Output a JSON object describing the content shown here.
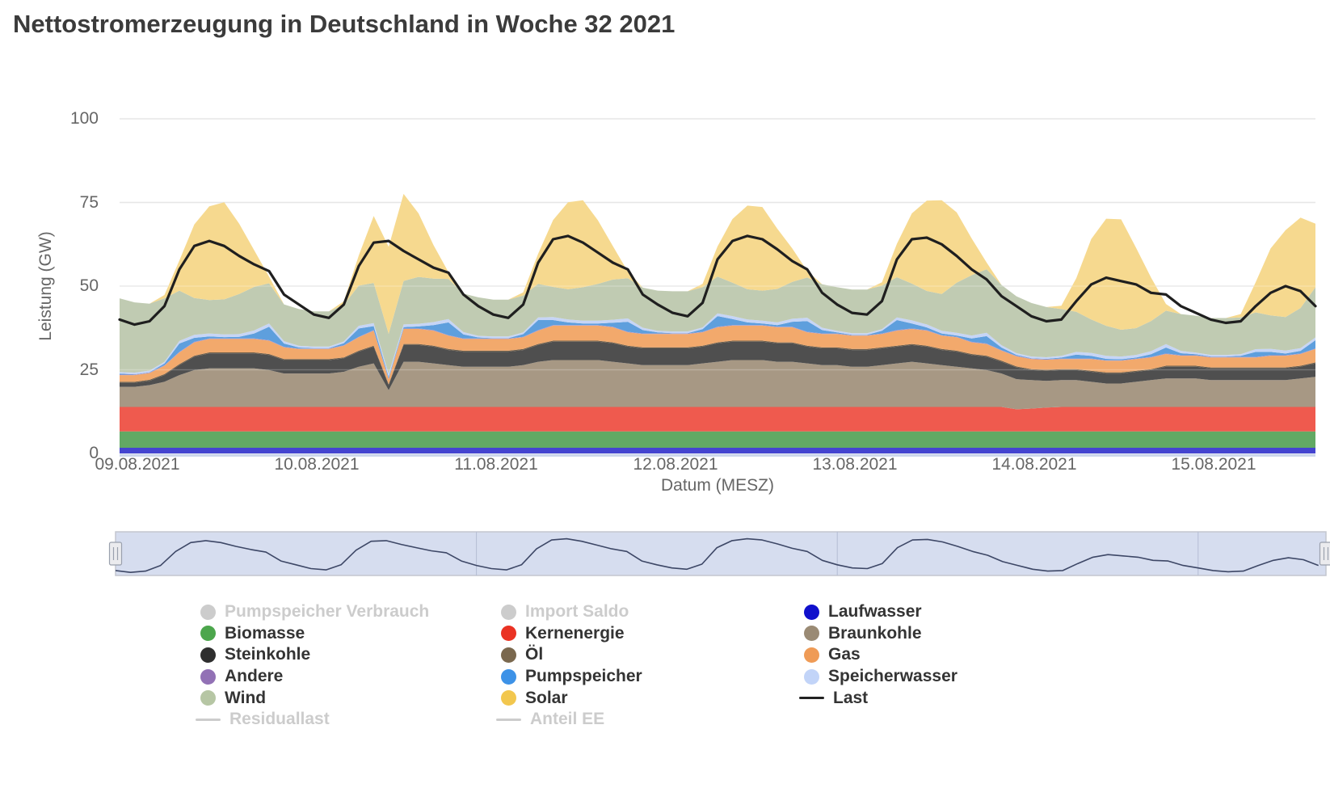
{
  "page": {
    "title": "Nettostromerzeugung in Deutschland in Woche 32 2021"
  },
  "axes": {
    "y_title": "Leistung (GW)",
    "x_title": "Datum (MESZ)",
    "y_ticks": [
      {
        "value": 0,
        "label": "0"
      },
      {
        "value": 25,
        "label": "25"
      },
      {
        "value": 50,
        "label": "50"
      },
      {
        "value": 75,
        "label": "75"
      },
      {
        "value": 100,
        "label": "100"
      }
    ],
    "x_ticks": [
      {
        "hour": 0,
        "label": "09.08.2021"
      },
      {
        "hour": 24,
        "label": "10.08.2021"
      },
      {
        "hour": 48,
        "label": "11.08.2021"
      },
      {
        "hour": 72,
        "label": "12.08.2021"
      },
      {
        "hour": 96,
        "label": "13.08.2021"
      },
      {
        "hour": 120,
        "label": "14.08.2021"
      },
      {
        "hour": 144,
        "label": "15.08.2021"
      }
    ]
  },
  "colors": {
    "title_text": "#3b3b3b",
    "axis_text": "#666666",
    "gridline": "#e6e6e6",
    "axis_baseline": "#ccd6eb",
    "disabled_legend": "#cccccc",
    "last_line": "#1f1f1f",
    "navigator_bg": "#d6ddef",
    "navigator_line": "#3d4766",
    "navigator_grid": "#b4bdd4",
    "navigator_border": "#c3c6cf",
    "handle_fill": "#ebebee",
    "handle_stroke": "#9aa0ad"
  },
  "navigator": {
    "selected_range": "full"
  },
  "legend": {
    "columns": [
      [
        {
          "label": "Pumpspeicher Verbrauch",
          "color": "#cccccc",
          "marker": "circle",
          "enabled": false
        },
        {
          "label": "Biomasse",
          "color": "#4ca64c",
          "marker": "circle",
          "enabled": true
        },
        {
          "label": "Steinkohle",
          "color": "#2e2e2e",
          "marker": "circle",
          "enabled": true
        },
        {
          "label": "Andere",
          "color": "#9271b5",
          "marker": "circle",
          "enabled": true
        },
        {
          "label": "Wind",
          "color": "#b6c6a4",
          "marker": "circle",
          "enabled": true
        },
        {
          "label": "Residuallast",
          "color": "#cccccc",
          "marker": "line",
          "enabled": false
        }
      ],
      [
        {
          "label": "Import Saldo",
          "color": "#cccccc",
          "marker": "circle",
          "enabled": false
        },
        {
          "label": "Kernenergie",
          "color": "#ea3223",
          "marker": "circle",
          "enabled": true
        },
        {
          "label": "Öl",
          "color": "#7a684e",
          "marker": "circle",
          "enabled": true
        },
        {
          "label": "Pumpspeicher",
          "color": "#3d92e7",
          "marker": "circle",
          "enabled": true
        },
        {
          "label": "Solar",
          "color": "#f2c74e",
          "marker": "circle",
          "enabled": true
        },
        {
          "label": "Anteil EE",
          "color": "#cccccc",
          "marker": "line",
          "enabled": false
        }
      ],
      [
        {
          "label": "Laufwasser",
          "color": "#1010cc",
          "marker": "circle",
          "enabled": true
        },
        {
          "label": "Braunkohle",
          "color": "#9a8a74",
          "marker": "circle",
          "enabled": true
        },
        {
          "label": "Gas",
          "color": "#ef9b56",
          "marker": "circle",
          "enabled": true
        },
        {
          "label": "Speicherwasser",
          "color": "#c2d4f8",
          "marker": "circle",
          "enabled": true
        },
        {
          "label": "Last",
          "color": "#222222",
          "marker": "line",
          "enabled": true
        }
      ]
    ]
  },
  "chart_data": {
    "type": "area",
    "title": "Nettostromerzeugung in Deutschland in Woche 32 2021",
    "xlabel": "Datum (MESZ)",
    "ylabel": "Leistung (GW)",
    "ylim": [
      0,
      100
    ],
    "grid": true,
    "legend_position": "bottom",
    "x_unit": "hours since 2021-08-09 00:00 MESZ",
    "hours_start": 0,
    "hours_step": 2,
    "points_count": 81,
    "stack_order": [
      "Laufwasser",
      "Biomasse",
      "Kernenergie",
      "Braunkohle",
      "Steinkohle",
      "Öl",
      "Gas",
      "Andere",
      "Pumpspeicher",
      "Speicherwasser",
      "Wind",
      "Solar"
    ],
    "series": [
      {
        "name": "Laufwasser",
        "area_color": "#4444d0",
        "const": 1.7,
        "count": 81
      },
      {
        "name": "Biomasse",
        "area_color": "#62a964",
        "const": 4.9,
        "count": 81
      },
      {
        "name": "Kernenergie",
        "area_color": "#ef5a4e",
        "values": [
          7.3,
          7.3,
          7.3,
          7.3,
          7.3,
          7.3,
          7.3,
          7.3,
          7.3,
          7.3,
          7.3,
          7.3,
          7.3,
          7.3,
          7.3,
          7.3,
          7.3,
          7.3,
          7.3,
          7.3,
          7.3,
          7.3,
          7.3,
          7.3,
          7.3,
          7.3,
          7.3,
          7.3,
          7.3,
          7.3,
          7.3,
          7.3,
          7.3,
          7.3,
          7.3,
          7.3,
          7.3,
          7.3,
          7.3,
          7.3,
          7.3,
          7.3,
          7.3,
          7.3,
          7.3,
          7.3,
          7.3,
          7.3,
          7.3,
          7.3,
          7.3,
          7.3,
          7.3,
          7.3,
          7.3,
          7.3,
          7.3,
          7.3,
          7.3,
          7.3,
          6.6,
          6.8,
          7.1,
          7.3,
          7.3,
          7.3,
          7.3,
          7.3,
          7.3,
          7.3,
          7.3,
          7.3,
          7.3,
          7.3,
          7.3,
          7.3,
          7.3,
          7.3,
          7.3,
          7.3,
          7.3
        ]
      },
      {
        "name": "Braunkohle",
        "area_color": "#a79884",
        "values": [
          6,
          6,
          6.5,
          7.5,
          9.5,
          11,
          11.5,
          11.5,
          11.5,
          11.5,
          11,
          10,
          10,
          10,
          10,
          10.5,
          12,
          13,
          5,
          13.5,
          13.5,
          13,
          12.5,
          12,
          12,
          12,
          12,
          12.5,
          13.5,
          14,
          14,
          14,
          14,
          13.5,
          13,
          12.5,
          12.5,
          12.5,
          12.5,
          13,
          13.5,
          14,
          14,
          14,
          13.5,
          13.5,
          13,
          12.5,
          12.5,
          12,
          12,
          12.5,
          13,
          13.5,
          13,
          12.5,
          12,
          11.5,
          11,
          10,
          9,
          8.5,
          8,
          8,
          8,
          7.5,
          7,
          7,
          7.5,
          8,
          8.5,
          8.5,
          8.5,
          8,
          8,
          8,
          8,
          8,
          8,
          8.5,
          9
        ]
      },
      {
        "name": "Steinkohle",
        "area_color": "#4f4f4f",
        "values": [
          1.2,
          1.2,
          1.3,
          2,
          3,
          4,
          4.5,
          4.5,
          4.5,
          4.5,
          4.5,
          4,
          4,
          4,
          4,
          4,
          4.5,
          5,
          1.5,
          5,
          5,
          5,
          4.5,
          4.5,
          4.5,
          4.5,
          4.5,
          4.5,
          5,
          5.5,
          5.5,
          5.5,
          5.5,
          5.5,
          5,
          5,
          5,
          5,
          5,
          5,
          5.5,
          5.5,
          5.5,
          5.5,
          5.5,
          5.5,
          5,
          5,
          5,
          5,
          5,
          5,
          5,
          5,
          5,
          4.5,
          4.5,
          4,
          4,
          3.5,
          3.5,
          3,
          3,
          3,
          3,
          3,
          3,
          3,
          3,
          3,
          3.5,
          3.5,
          3.5,
          3.5,
          3.5,
          3.5,
          3.5,
          3.5,
          3.5,
          3.5,
          4
        ]
      },
      {
        "name": "Öl",
        "area_color": "#6e5f4c",
        "const": 0.3,
        "count": 81
      },
      {
        "name": "Gas",
        "area_color": "#f2a96c",
        "values": [
          2,
          2,
          2,
          2.5,
          3.5,
          4,
          4,
          4,
          4,
          4,
          4,
          3.5,
          3,
          3,
          3,
          3.5,
          4,
          4.5,
          1.5,
          4.5,
          4.5,
          4.5,
          4,
          3.5,
          3.5,
          3.5,
          3.5,
          3.5,
          4,
          4.5,
          4.5,
          4.5,
          4.5,
          4.5,
          4,
          4,
          4,
          4,
          4,
          4,
          4.5,
          4.5,
          4.5,
          4.5,
          4.5,
          4.5,
          4,
          4,
          4,
          4,
          4,
          4,
          4.5,
          4.5,
          4.5,
          4,
          4,
          3.5,
          3.5,
          3,
          3,
          3,
          3,
          3,
          3,
          3.5,
          3.5,
          3.5,
          3.5,
          3.5,
          3.5,
          3,
          3,
          3,
          3,
          3,
          3,
          3.5,
          3.5,
          3.5,
          4
        ]
      },
      {
        "name": "Andere",
        "area_color": "#a98fc4",
        "const": 0.15,
        "count": 81
      },
      {
        "name": "Pumpspeicher",
        "area_color": "#5e9fdd",
        "values": [
          0.3,
          0.1,
          0.1,
          0.5,
          2.5,
          1.2,
          0.6,
          0.4,
          0.5,
          1.5,
          4,
          1,
          0.3,
          0.1,
          0.1,
          0.6,
          2.5,
          1.2,
          0.5,
          0.4,
          0.6,
          1.5,
          3.8,
          1.2,
          0.3,
          0.1,
          0.1,
          0.8,
          3,
          1.5,
          0.8,
          0.5,
          0.5,
          1.2,
          3,
          1,
          0.3,
          0.1,
          0.1,
          0.8,
          3.2,
          1.8,
          0.8,
          0.5,
          0.5,
          1.5,
          3.2,
          1,
          0.3,
          0.1,
          0.1,
          0.8,
          3,
          1.5,
          0.8,
          0.5,
          0.4,
          1,
          2.2,
          0.8,
          0.3,
          0.1,
          0.1,
          0.3,
          1.2,
          0.8,
          0.4,
          0.3,
          0.3,
          0.8,
          1.8,
          0.6,
          0.3,
          0.1,
          0.1,
          0.3,
          1.5,
          1,
          0.5,
          0.8,
          2.5
        ]
      },
      {
        "name": "Speicherwasser",
        "area_color": "#c6d5f6",
        "values": [
          0.5,
          0.5,
          0.5,
          0.5,
          0.8,
          0.9,
          0.9,
          0.8,
          0.8,
          0.9,
          1,
          0.7,
          0.5,
          0.5,
          0.5,
          0.5,
          0.8,
          0.9,
          0.9,
          0.8,
          0.8,
          0.9,
          1,
          0.7,
          0.5,
          0.5,
          0.5,
          0.5,
          0.8,
          0.9,
          0.9,
          0.8,
          0.8,
          0.9,
          1,
          0.7,
          0.5,
          0.5,
          0.5,
          0.5,
          0.8,
          0.9,
          0.9,
          0.8,
          0.8,
          0.9,
          1,
          0.7,
          0.5,
          0.5,
          0.5,
          0.5,
          0.8,
          0.9,
          0.9,
          0.8,
          0.8,
          0.9,
          1,
          0.7,
          0.5,
          0.5,
          0.5,
          0.5,
          0.8,
          0.9,
          0.9,
          0.8,
          0.8,
          0.9,
          1,
          0.7,
          0.5,
          0.5,
          0.5,
          0.5,
          0.8,
          0.9,
          0.9,
          0.8,
          0.8
        ]
      },
      {
        "name": "Wind",
        "area_color": "#c0cbb2",
        "values": [
          22,
          21,
          20,
          19,
          15,
          11,
          10,
          10.5,
          12,
          13,
          12,
          11,
          11,
          10.5,
          10.5,
          11,
          12,
          12,
          12,
          13,
          14,
          13,
          12,
          11.5,
          11.5,
          11,
          11,
          11,
          10,
          9,
          9,
          10,
          11,
          12,
          12,
          12,
          12,
          12,
          12,
          12,
          11,
          10,
          9,
          9,
          10,
          11,
          12,
          13,
          13,
          13,
          13,
          13,
          12,
          11,
          10,
          11,
          15,
          18,
          19,
          18,
          17,
          16,
          15,
          14,
          12,
          10,
          9,
          8,
          8,
          9,
          10,
          11,
          11,
          11,
          11,
          11,
          11,
          10,
          10,
          12,
          15
        ]
      },
      {
        "name": "Solar",
        "area_color": "#f6d98f",
        "values": [
          0,
          0,
          0,
          1,
          9,
          22,
          28,
          29,
          21,
          11,
          2,
          0,
          0,
          0,
          0,
          1,
          9,
          20,
          26,
          26,
          19,
          10,
          2,
          0,
          0,
          0,
          0,
          1,
          9,
          20,
          26,
          26,
          19,
          10,
          2,
          0,
          0,
          0,
          0,
          1,
          9,
          19,
          25,
          25,
          18,
          10,
          2,
          0,
          0,
          0,
          0,
          1,
          10,
          21,
          27,
          28,
          21,
          11,
          2,
          0,
          0,
          0,
          0,
          1,
          10,
          24,
          32,
          33,
          24,
          13,
          2,
          0,
          0,
          0,
          0,
          1,
          9,
          20,
          26,
          27,
          19
        ]
      }
    ],
    "last_line": {
      "name": "Last",
      "color": "#1f1f1f",
      "values": [
        40,
        38.5,
        39.5,
        44,
        55,
        62,
        63.5,
        62,
        59,
        56.5,
        54.5,
        47.5,
        44.5,
        41.5,
        40.5,
        44.5,
        56,
        63,
        63.5,
        60.5,
        58,
        55.5,
        54,
        47.5,
        44,
        41.5,
        40.5,
        44.5,
        57,
        64,
        65,
        63,
        60,
        57,
        55,
        47.5,
        44.5,
        42,
        41,
        45,
        58,
        63.5,
        65,
        64,
        61,
        57.5,
        55,
        48,
        44.5,
        42,
        41.5,
        45.5,
        58,
        64,
        64.5,
        62.5,
        59,
        55,
        52,
        47,
        44,
        41,
        39.5,
        40,
        45.5,
        50.5,
        52.5,
        51.5,
        50.5,
        48,
        47.5,
        44,
        42,
        40,
        39,
        39.5,
        44,
        48,
        50,
        48.5,
        44
      ]
    },
    "hidden_series": [
      "Pumpspeicher Verbrauch",
      "Import Saldo",
      "Residuallast",
      "Anteil EE"
    ]
  }
}
